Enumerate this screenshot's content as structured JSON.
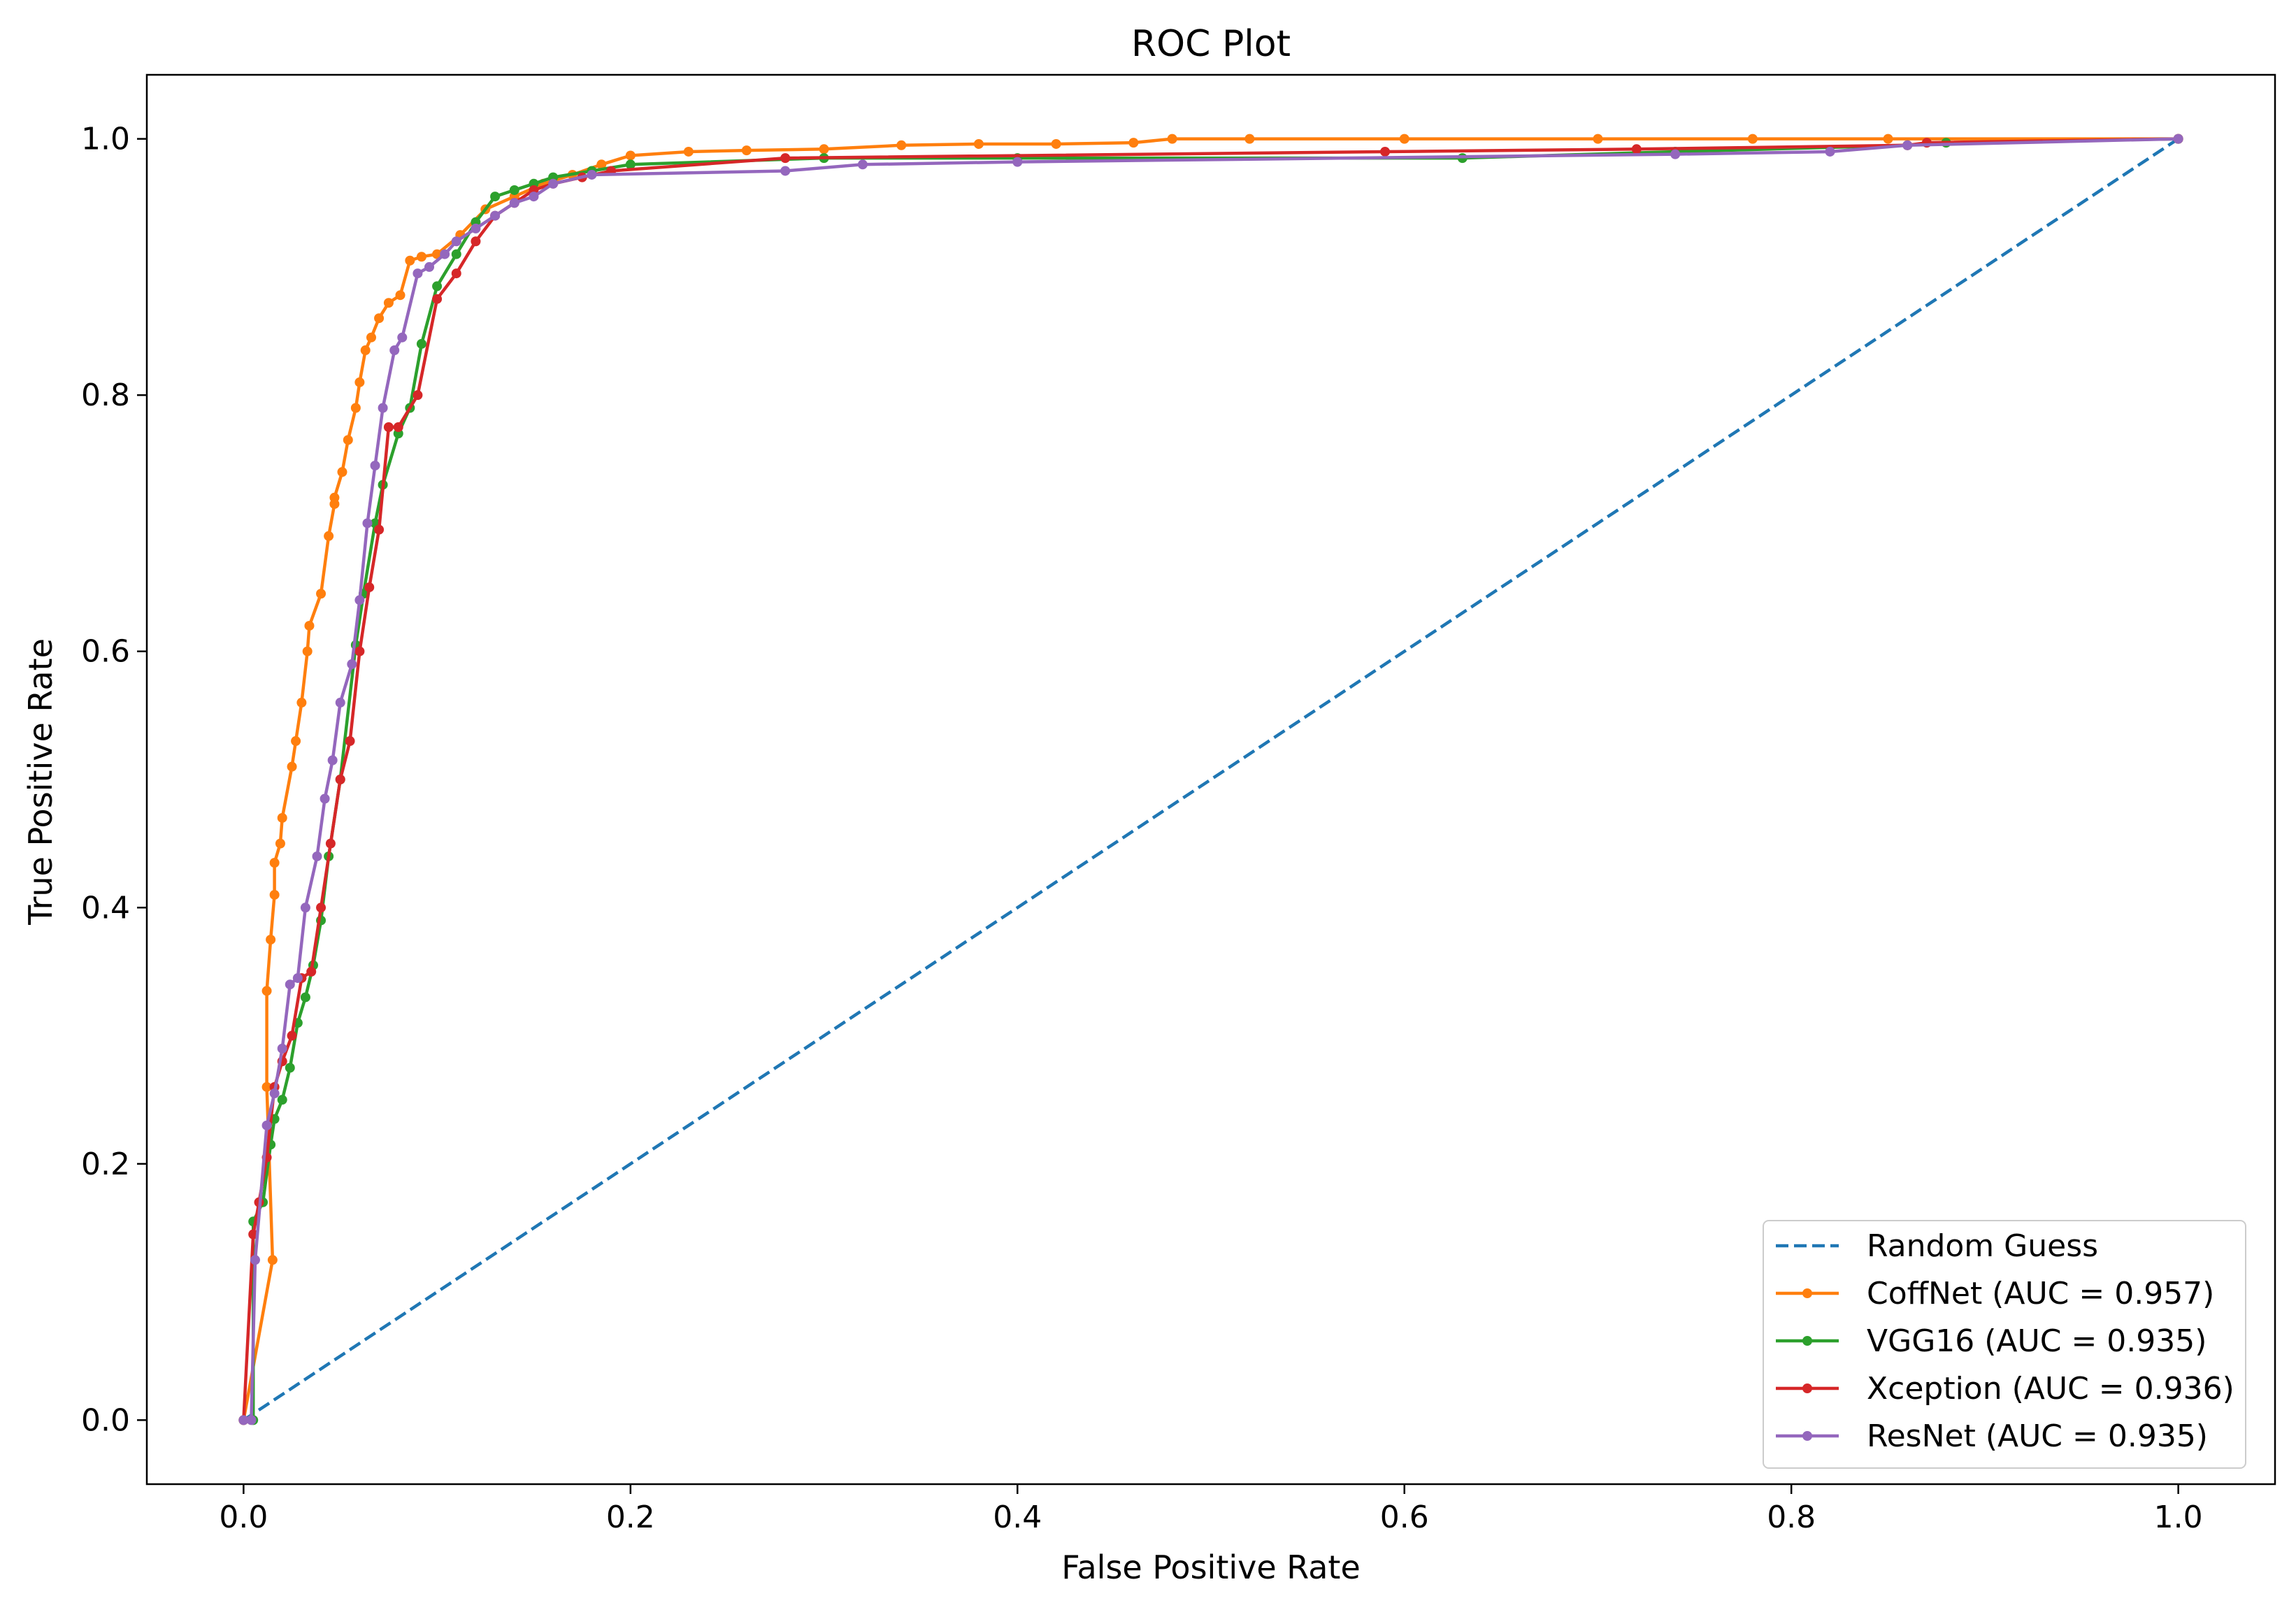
{
  "chart_data": {
    "type": "line",
    "title": "ROC Plot",
    "xlabel": "False Positive Rate",
    "ylabel": "True Positive Rate",
    "xlim": [
      -0.05,
      1.05
    ],
    "ylim": [
      -0.05,
      1.05
    ],
    "xticks": [
      0.0,
      0.2,
      0.4,
      0.6,
      0.8,
      1.0
    ],
    "yticks": [
      0.0,
      0.2,
      0.4,
      0.6,
      0.8,
      1.0
    ],
    "xtick_labels": [
      "0.0",
      "0.2",
      "0.4",
      "0.6",
      "0.8",
      "1.0"
    ],
    "ytick_labels": [
      "0.0",
      "0.2",
      "0.4",
      "0.6",
      "0.8",
      "1.0"
    ],
    "grid": false,
    "legend_position": "lower-right",
    "series": [
      {
        "name": "Random Guess",
        "color": "#1f77b4",
        "dashed": true,
        "markers": false,
        "x": [
          0.0,
          1.0
        ],
        "y": [
          0.0,
          1.0
        ]
      },
      {
        "name": "CoffNet (AUC = 0.957)",
        "color": "#ff7f0e",
        "dashed": false,
        "markers": true,
        "x": [
          0.0,
          0.015,
          0.012,
          0.012,
          0.014,
          0.016,
          0.016,
          0.019,
          0.02,
          0.025,
          0.027,
          0.03,
          0.033,
          0.034,
          0.04,
          0.044,
          0.047,
          0.047,
          0.051,
          0.054,
          0.058,
          0.06,
          0.063,
          0.066,
          0.07,
          0.075,
          0.081,
          0.086,
          0.092,
          0.1,
          0.112,
          0.125,
          0.14,
          0.155,
          0.17,
          0.185,
          0.2,
          0.23,
          0.26,
          0.3,
          0.34,
          0.38,
          0.42,
          0.46,
          0.48,
          0.52,
          0.6,
          0.7,
          0.78,
          0.85,
          1.0
        ],
        "y": [
          0.0,
          0.125,
          0.26,
          0.335,
          0.375,
          0.41,
          0.435,
          0.45,
          0.47,
          0.51,
          0.53,
          0.56,
          0.6,
          0.62,
          0.645,
          0.69,
          0.715,
          0.72,
          0.74,
          0.765,
          0.79,
          0.81,
          0.835,
          0.845,
          0.86,
          0.872,
          0.878,
          0.905,
          0.908,
          0.91,
          0.925,
          0.945,
          0.955,
          0.965,
          0.972,
          0.98,
          0.987,
          0.99,
          0.991,
          0.992,
          0.995,
          0.996,
          0.996,
          0.997,
          1.0,
          1.0,
          1.0,
          1.0,
          1.0,
          1.0,
          1.0
        ]
      },
      {
        "name": "VGG16 (AUC = 0.935)",
        "color": "#2ca02c",
        "dashed": false,
        "markers": true,
        "x": [
          0.0,
          0.005,
          0.005,
          0.01,
          0.014,
          0.016,
          0.02,
          0.024,
          0.028,
          0.032,
          0.036,
          0.04,
          0.044,
          0.05,
          0.058,
          0.062,
          0.068,
          0.072,
          0.08,
          0.086,
          0.092,
          0.1,
          0.11,
          0.12,
          0.13,
          0.14,
          0.15,
          0.16,
          0.18,
          0.2,
          0.3,
          0.4,
          0.63,
          0.74,
          0.86,
          0.88,
          1.0
        ],
        "y": [
          0.0,
          0.0,
          0.155,
          0.17,
          0.215,
          0.235,
          0.25,
          0.275,
          0.31,
          0.33,
          0.355,
          0.39,
          0.44,
          0.5,
          0.605,
          0.645,
          0.7,
          0.73,
          0.77,
          0.79,
          0.84,
          0.885,
          0.91,
          0.935,
          0.955,
          0.96,
          0.965,
          0.97,
          0.975,
          0.98,
          0.985,
          0.985,
          0.985,
          0.99,
          0.995,
          0.997,
          1.0
        ]
      },
      {
        "name": "Xception (AUC = 0.936)",
        "color": "#d62728",
        "dashed": false,
        "markers": true,
        "x": [
          0.0,
          0.005,
          0.008,
          0.012,
          0.016,
          0.02,
          0.025,
          0.03,
          0.035,
          0.04,
          0.045,
          0.05,
          0.055,
          0.06,
          0.065,
          0.07,
          0.075,
          0.08,
          0.09,
          0.1,
          0.11,
          0.12,
          0.13,
          0.14,
          0.15,
          0.16,
          0.175,
          0.19,
          0.28,
          0.59,
          0.72,
          0.86,
          0.87,
          1.0
        ],
        "y": [
          0.0,
          0.145,
          0.17,
          0.205,
          0.26,
          0.28,
          0.3,
          0.345,
          0.35,
          0.4,
          0.45,
          0.5,
          0.53,
          0.6,
          0.65,
          0.695,
          0.775,
          0.775,
          0.8,
          0.875,
          0.895,
          0.92,
          0.94,
          0.95,
          0.96,
          0.965,
          0.97,
          0.975,
          0.985,
          0.99,
          0.992,
          0.995,
          0.997,
          1.0
        ]
      },
      {
        "name": "ResNet (AUC = 0.935)",
        "color": "#9467bd",
        "dashed": false,
        "markers": true,
        "x": [
          0.0,
          0.004,
          0.006,
          0.012,
          0.016,
          0.02,
          0.024,
          0.028,
          0.032,
          0.038,
          0.042,
          0.046,
          0.05,
          0.056,
          0.06,
          0.064,
          0.068,
          0.072,
          0.078,
          0.082,
          0.09,
          0.096,
          0.104,
          0.11,
          0.12,
          0.13,
          0.14,
          0.15,
          0.16,
          0.18,
          0.28,
          0.32,
          0.4,
          0.74,
          0.82,
          0.86,
          1.0
        ],
        "y": [
          0.0,
          0.0,
          0.125,
          0.23,
          0.255,
          0.29,
          0.34,
          0.345,
          0.4,
          0.44,
          0.485,
          0.515,
          0.56,
          0.59,
          0.64,
          0.7,
          0.745,
          0.79,
          0.835,
          0.845,
          0.895,
          0.9,
          0.91,
          0.92,
          0.93,
          0.94,
          0.95,
          0.955,
          0.965,
          0.972,
          0.975,
          0.98,
          0.982,
          0.988,
          0.99,
          0.995,
          1.0
        ]
      }
    ]
  }
}
